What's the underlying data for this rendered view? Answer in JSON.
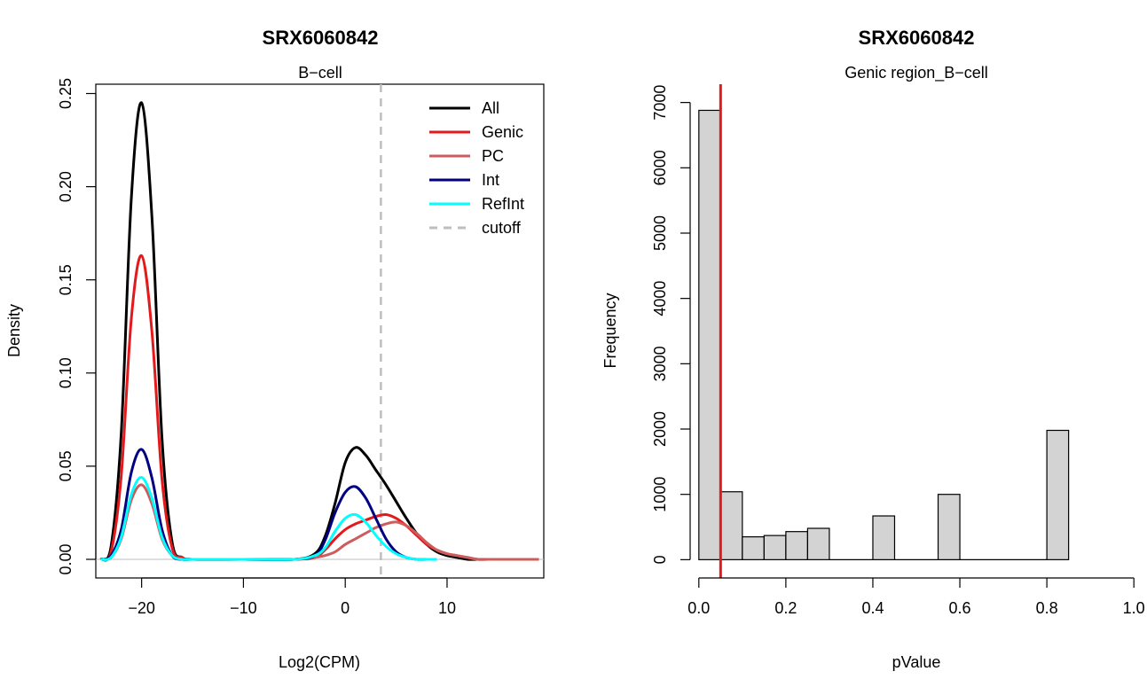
{
  "chart_data": [
    {
      "type": "line",
      "title": "SRX6060842",
      "subtitle": "B−cell",
      "xlabel": "Log2(CPM)",
      "ylabel": "Density",
      "xlim": [
        -24.5,
        19.5
      ],
      "ylim": [
        -0.01,
        0.255
      ],
      "x_ticks": [
        -20,
        -10,
        0,
        10
      ],
      "x_tick_labels": [
        "−20",
        "−10",
        "0",
        "10"
      ],
      "y_ticks": [
        0.0,
        0.05,
        0.1,
        0.15,
        0.2,
        0.25
      ],
      "y_tick_labels": [
        "0.00",
        "0.05",
        "0.10",
        "0.15",
        "0.20",
        "0.25"
      ],
      "baseline": 0,
      "cutoff": 3.5,
      "legend": {
        "position": "top-right",
        "entries": [
          {
            "label": "All",
            "color": "#000000",
            "style": "solid"
          },
          {
            "label": "Genic",
            "color": "#e31a1c",
            "style": "solid"
          },
          {
            "label": "PC",
            "color": "#cd5c5c",
            "style": "solid"
          },
          {
            "label": "Int",
            "color": "#000080",
            "style": "solid"
          },
          {
            "label": "RefInt",
            "color": "#00ffff",
            "style": "solid"
          },
          {
            "label": "cutoff",
            "color": "#bebebe",
            "style": "dashed"
          }
        ]
      },
      "series": [
        {
          "name": "All",
          "color": "#000000",
          "x": [
            -24,
            -23,
            -22,
            -21,
            -20,
            -19,
            -18,
            -17,
            -16,
            -15,
            -10,
            -5,
            -3,
            -2,
            -1,
            0,
            1,
            2,
            3,
            4,
            5,
            6,
            7,
            8,
            9,
            10,
            11,
            12,
            13,
            14
          ],
          "y": [
            0.0,
            0.007,
            0.068,
            0.195,
            0.245,
            0.185,
            0.065,
            0.009,
            0.001,
            0.0,
            0.0,
            0.0,
            0.003,
            0.012,
            0.03,
            0.052,
            0.06,
            0.056,
            0.048,
            0.04,
            0.031,
            0.022,
            0.014,
            0.008,
            0.004,
            0.002,
            0.001,
            0.0,
            0.0,
            0.0
          ]
        },
        {
          "name": "Genic",
          "color": "#e31a1c",
          "x": [
            -24,
            -23,
            -22,
            -21,
            -20,
            -19,
            -18,
            -17,
            -16,
            -15,
            -10,
            -5,
            -3,
            -2,
            -1,
            0,
            1,
            2,
            3,
            4,
            5,
            6,
            7,
            8,
            9,
            10,
            11,
            12,
            13,
            14,
            16,
            18,
            19
          ],
          "y": [
            0.0,
            0.004,
            0.045,
            0.13,
            0.163,
            0.123,
            0.043,
            0.006,
            0.001,
            0.0,
            0.0,
            0.0,
            0.001,
            0.005,
            0.011,
            0.016,
            0.019,
            0.021,
            0.023,
            0.024,
            0.022,
            0.018,
            0.013,
            0.008,
            0.005,
            0.003,
            0.002,
            0.001,
            0.0,
            0.0,
            0.0,
            0.0,
            0.0
          ]
        },
        {
          "name": "PC",
          "color": "#cd5c5c",
          "x": [
            -24,
            -23,
            -22,
            -21,
            -20,
            -19,
            -18,
            -17,
            -16,
            -15,
            -10,
            -5,
            -3,
            -2,
            -1,
            0,
            1,
            2,
            3,
            4,
            5,
            6,
            7,
            8,
            9,
            10,
            11,
            12,
            13,
            14,
            16,
            18,
            19
          ],
          "y": [
            0.0,
            0.001,
            0.011,
            0.032,
            0.04,
            0.03,
            0.011,
            0.002,
            0.0,
            0.0,
            0.0,
            0.0,
            0.001,
            0.002,
            0.004,
            0.008,
            0.011,
            0.014,
            0.017,
            0.019,
            0.02,
            0.018,
            0.014,
            0.009,
            0.005,
            0.003,
            0.002,
            0.001,
            0.0,
            0.0,
            0.0,
            0.0,
            0.0
          ]
        },
        {
          "name": "Int",
          "color": "#000080",
          "x": [
            -24,
            -23,
            -22,
            -21,
            -20,
            -19,
            -18,
            -17,
            -16,
            -15,
            -10,
            -5,
            -3,
            -2,
            -1,
            0,
            1,
            2,
            3,
            4,
            5,
            6,
            7,
            8,
            9
          ],
          "y": [
            0.0,
            0.002,
            0.016,
            0.047,
            0.059,
            0.044,
            0.016,
            0.002,
            0.0,
            0.0,
            0.0,
            0.0,
            0.002,
            0.01,
            0.025,
            0.036,
            0.039,
            0.033,
            0.022,
            0.011,
            0.004,
            0.001,
            0.0,
            0.0,
            0.0
          ]
        },
        {
          "name": "RefInt",
          "color": "#00ffff",
          "x": [
            -24,
            -23,
            -22,
            -21,
            -20,
            -19,
            -18,
            -17,
            -16,
            -15,
            -10,
            -5,
            -3,
            -2,
            -1,
            0,
            1,
            2,
            3,
            4,
            5,
            6,
            7,
            8,
            9
          ],
          "y": [
            0.0,
            0.001,
            0.012,
            0.035,
            0.044,
            0.033,
            0.012,
            0.002,
            0.0,
            0.0,
            0.0,
            0.0,
            0.002,
            0.006,
            0.015,
            0.022,
            0.024,
            0.02,
            0.013,
            0.007,
            0.003,
            0.001,
            0.0,
            0.0,
            0.0
          ]
        }
      ]
    },
    {
      "type": "bar",
      "title": "SRX6060842",
      "subtitle": "Genic region_B−cell",
      "xlabel": "pValue",
      "ylabel": "Frequency",
      "xlim": [
        -0.02,
        1.02
      ],
      "ylim": [
        -280,
        7280
      ],
      "x_ticks": [
        0.0,
        0.2,
        0.4,
        0.6,
        0.8,
        1.0
      ],
      "x_tick_labels": [
        "0.0",
        "0.2",
        "0.4",
        "0.6",
        "0.8",
        "1.0"
      ],
      "y_ticks": [
        0,
        1000,
        2000,
        3000,
        4000,
        5000,
        6000,
        7000
      ],
      "y_tick_labels": [
        "0",
        "1000",
        "2000",
        "3000",
        "4000",
        "5000",
        "6000",
        "7000"
      ],
      "bin_width": 0.05,
      "bins": [
        {
          "x0": 0.0,
          "count": 6880
        },
        {
          "x0": 0.05,
          "count": 1040
        },
        {
          "x0": 0.1,
          "count": 350
        },
        {
          "x0": 0.15,
          "count": 370
        },
        {
          "x0": 0.2,
          "count": 430
        },
        {
          "x0": 0.25,
          "count": 480
        },
        {
          "x0": 0.4,
          "count": 670
        },
        {
          "x0": 0.55,
          "count": 1000
        },
        {
          "x0": 0.8,
          "count": 1980
        }
      ],
      "baseline_range": [
        0.3,
        0.8
      ],
      "bar_fill": "#d3d3d3",
      "bar_stroke": "#000000",
      "threshold": 0.05,
      "threshold_color": "#e31a1c"
    }
  ]
}
